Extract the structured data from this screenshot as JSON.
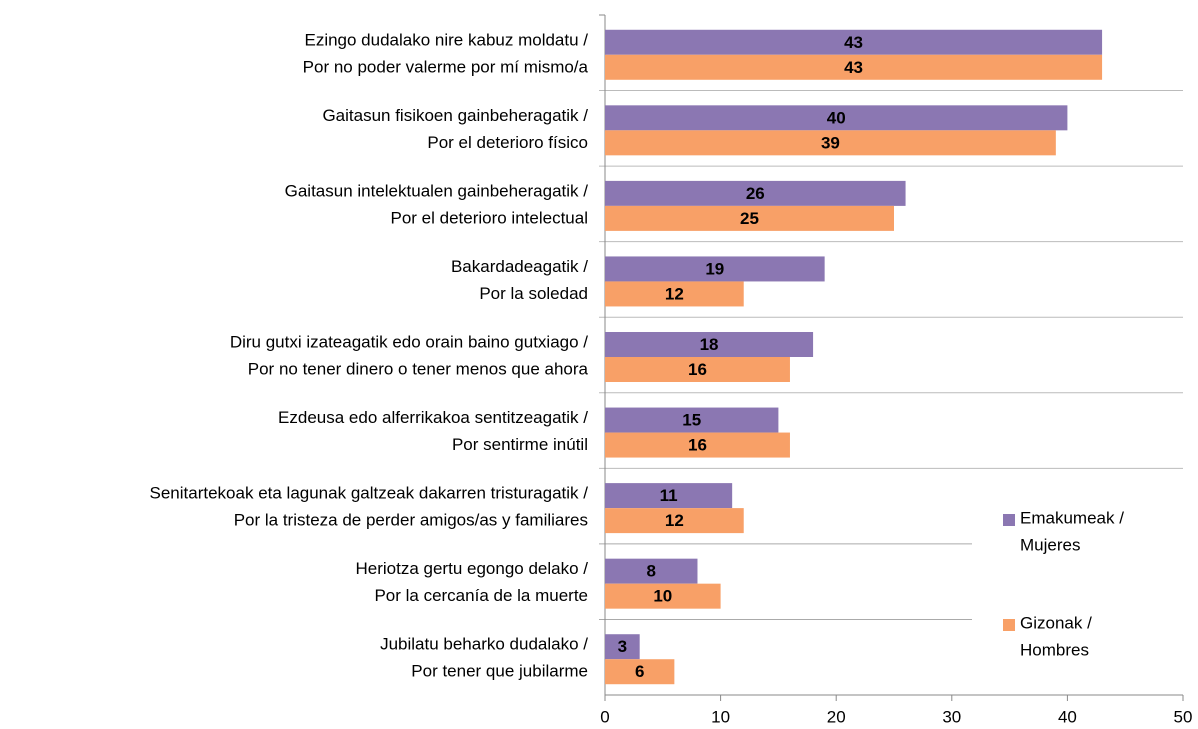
{
  "chart_data": {
    "type": "hbar",
    "categories": [
      "Ezingo dudalako nire kabuz moldatu / Por no poder valerme por mí mismo/a",
      "Gaitasun fisikoen gainbeheragatik / Por el deterioro físico",
      "Gaitasun intelektualen gainbeheragatik / Por el deterioro intelectual",
      "Bakardadeagatik / Por la soledad",
      "Diru gutxi izateagatik edo orain baino gutxiago / Por no tener dinero o tener menos que ahora",
      "Ezdeusa edo alferrikakoa sentitzeagatik / Por sentirme inútil",
      "Senitartekoak eta lagunak galtzeak dakarren tristuragatik / Por la tristeza de perder amigos/as y familiares",
      "Heriotza gertu egongo delako / Por la cercanía de la muerte",
      "Jubilatu beharko dudalako / Por tener que jubilarme"
    ],
    "series": [
      {
        "name": "Emakumeak / Mujeres",
        "color": "#8b77b2",
        "values": [
          43,
          40,
          26,
          19,
          18,
          15,
          11,
          8,
          3
        ]
      },
      {
        "name": "Gizonak / Hombres",
        "color": "#f8a067",
        "values": [
          43,
          39,
          25,
          12,
          16,
          16,
          12,
          10,
          6
        ]
      }
    ],
    "xlim": [
      0,
      50
    ],
    "xticks": [
      0,
      10,
      20,
      30,
      40,
      50
    ],
    "legend": "right"
  }
}
